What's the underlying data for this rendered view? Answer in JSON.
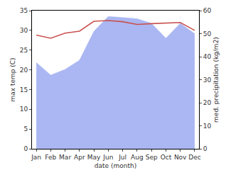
{
  "chart_data": {
    "type": "line",
    "categories": [
      "Jan",
      "Feb",
      "Mar",
      "Apr",
      "May",
      "Jun",
      "Jul",
      "Aug",
      "Sep",
      "Oct",
      "Nov",
      "Dec"
    ],
    "xlabel": "date (month)",
    "ylabel": "max temp (C)",
    "y2label": "med. precipitation (kg/m2)",
    "ylim": [
      0,
      35
    ],
    "yticks": [
      0,
      5,
      10,
      15,
      20,
      25,
      30,
      35
    ],
    "y2lim": [
      0,
      60
    ],
    "y2ticks": [
      0,
      10,
      20,
      30,
      40,
      50,
      60
    ],
    "grid": false,
    "series": [
      {
        "name": "med. precipitation",
        "type": "area",
        "axis": "y2",
        "color": "#aab7f2",
        "values": [
          37.5,
          32,
          34.5,
          38.5,
          51,
          57.5,
          57,
          56.5,
          54.5,
          48,
          54.5,
          50
        ]
      },
      {
        "name": "max temp",
        "type": "line",
        "axis": "y",
        "color": "#c9524f",
        "values": [
          28.8,
          28,
          29.3,
          29.8,
          32.3,
          32.5,
          32.2,
          31.5,
          31.7,
          31.8,
          32.0,
          30.0
        ]
      }
    ]
  }
}
